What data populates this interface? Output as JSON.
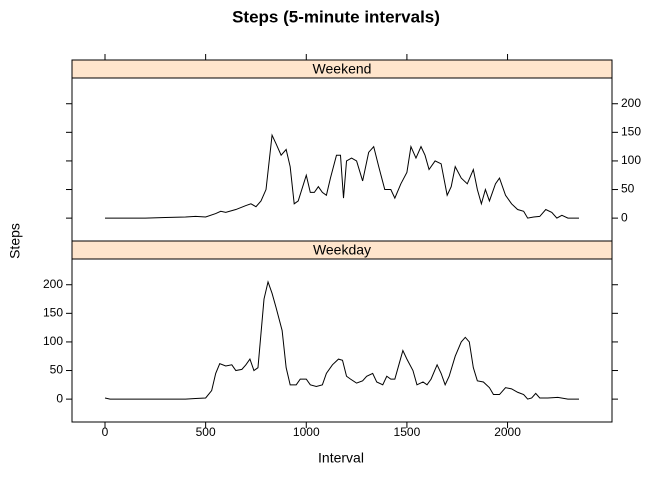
{
  "chart_data": {
    "type": "line",
    "title": "Steps (5-minute intervals)",
    "xlabel": "Interval",
    "ylabel": "Steps",
    "xlim": [
      -164,
      2519
    ],
    "xticks": [
      0,
      500,
      1000,
      1500,
      2000
    ],
    "ylim": [
      -40,
      245
    ],
    "yticks": [
      0,
      50,
      100,
      150,
      200
    ],
    "strip_color": "#ffe5cc",
    "line_color": "#000000",
    "series": [
      {
        "name": "Weekend",
        "x": [
          0,
          100,
          200,
          300,
          400,
          450,
          500,
          550,
          575,
          600,
          650,
          700,
          725,
          750,
          775,
          800,
          830,
          850,
          875,
          900,
          920,
          940,
          960,
          1000,
          1020,
          1040,
          1060,
          1080,
          1100,
          1120,
          1150,
          1170,
          1185,
          1200,
          1225,
          1250,
          1280,
          1310,
          1335,
          1360,
          1390,
          1420,
          1440,
          1470,
          1500,
          1520,
          1545,
          1570,
          1590,
          1610,
          1640,
          1670,
          1700,
          1720,
          1740,
          1770,
          1800,
          1830,
          1850,
          1870,
          1890,
          1910,
          1940,
          1960,
          1990,
          2020,
          2050,
          2080,
          2100,
          2130,
          2160,
          2190,
          2220,
          2245,
          2270,
          2300,
          2355
        ],
        "values": [
          0,
          0,
          0,
          1,
          2,
          3,
          2,
          8,
          12,
          10,
          15,
          22,
          25,
          20,
          30,
          50,
          145,
          130,
          110,
          120,
          90,
          25,
          30,
          75,
          45,
          45,
          55,
          45,
          40,
          70,
          110,
          110,
          35,
          100,
          105,
          100,
          65,
          115,
          125,
          90,
          50,
          50,
          35,
          60,
          80,
          125,
          105,
          125,
          110,
          85,
          100,
          95,
          40,
          55,
          90,
          70,
          60,
          85,
          50,
          25,
          50,
          30,
          60,
          70,
          40,
          25,
          15,
          12,
          0,
          2,
          3,
          15,
          10,
          0,
          5,
          0,
          0
        ]
      },
      {
        "name": "Weekday",
        "x": [
          0,
          25,
          100,
          200,
          300,
          400,
          450,
          500,
          530,
          550,
          570,
          600,
          630,
          650,
          680,
          700,
          720,
          740,
          760,
          790,
          810,
          830,
          850,
          880,
          900,
          920,
          950,
          970,
          1000,
          1020,
          1050,
          1080,
          1100,
          1130,
          1160,
          1180,
          1200,
          1220,
          1250,
          1280,
          1300,
          1330,
          1350,
          1380,
          1400,
          1420,
          1440,
          1460,
          1480,
          1500,
          1530,
          1550,
          1580,
          1600,
          1620,
          1650,
          1670,
          1690,
          1710,
          1740,
          1770,
          1790,
          1810,
          1830,
          1850,
          1880,
          1910,
          1930,
          1960,
          1990,
          2020,
          2050,
          2080,
          2100,
          2120,
          2140,
          2160,
          2200,
          2250,
          2300,
          2355
        ],
        "values": [
          2,
          0,
          0,
          0,
          0,
          0,
          1,
          2,
          15,
          45,
          62,
          58,
          60,
          50,
          52,
          60,
          70,
          50,
          55,
          175,
          205,
          185,
          160,
          120,
          55,
          25,
          25,
          35,
          35,
          25,
          22,
          25,
          45,
          60,
          70,
          68,
          40,
          35,
          28,
          32,
          40,
          45,
          30,
          25,
          40,
          35,
          35,
          60,
          85,
          70,
          50,
          25,
          30,
          25,
          35,
          60,
          45,
          25,
          40,
          75,
          100,
          108,
          100,
          55,
          32,
          30,
          20,
          8,
          8,
          20,
          18,
          12,
          8,
          0,
          2,
          10,
          2,
          2,
          3,
          0,
          0
        ]
      }
    ]
  }
}
